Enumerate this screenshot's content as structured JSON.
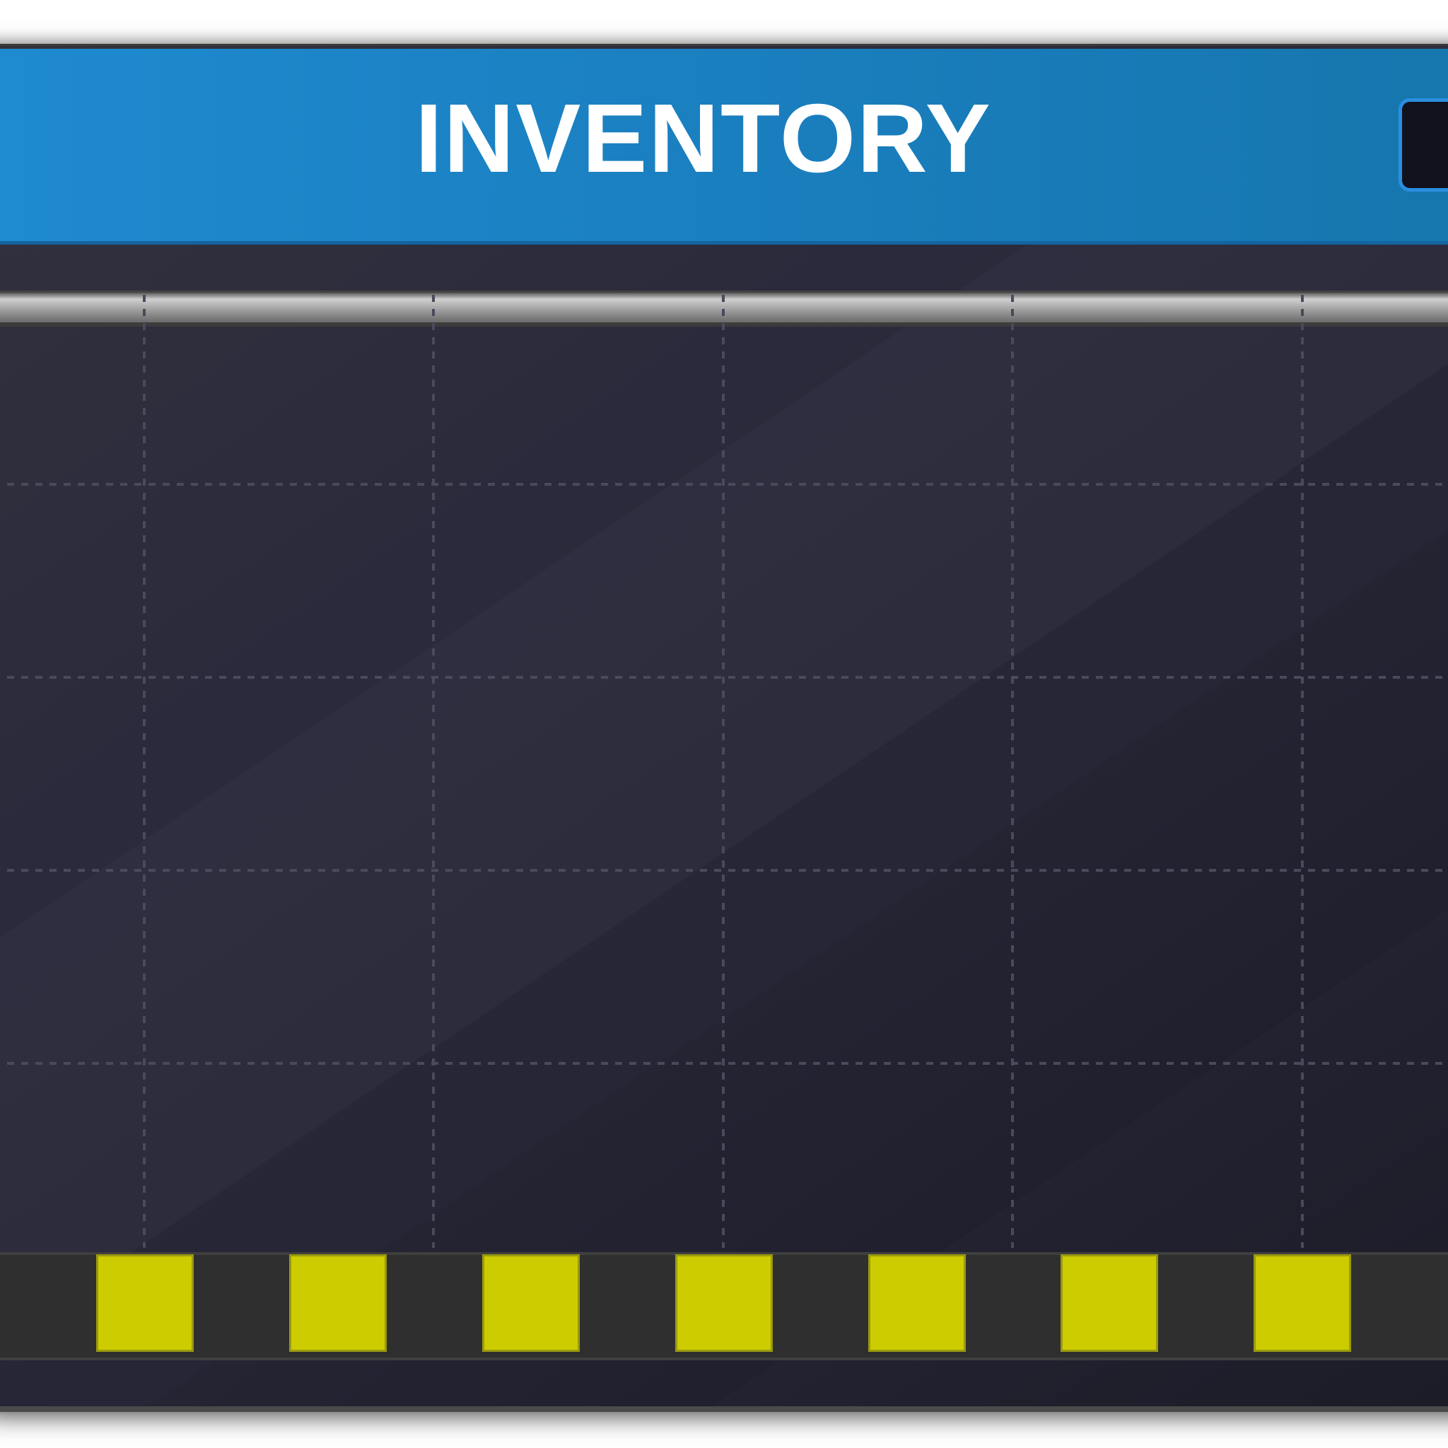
{
  "inventory": {
    "title": "INVENTORY",
    "close_button": {
      "icon": "close-icon"
    },
    "grid": {
      "columns": 5,
      "rows": 4
    },
    "hotbar": {
      "slots": [
        {
          "highlighted": true
        },
        {
          "highlighted": true
        },
        {
          "highlighted": true
        },
        {
          "highlighted": true
        },
        {
          "highlighted": true
        },
        {
          "highlighted": true
        },
        {
          "highlighted": true
        }
      ]
    },
    "colors": {
      "header": "#1a7fbf",
      "panel": "#2a2a3c",
      "slot_highlight": "#cccc00",
      "slot_empty": "#333333",
      "close_button": "#12121f"
    }
  }
}
